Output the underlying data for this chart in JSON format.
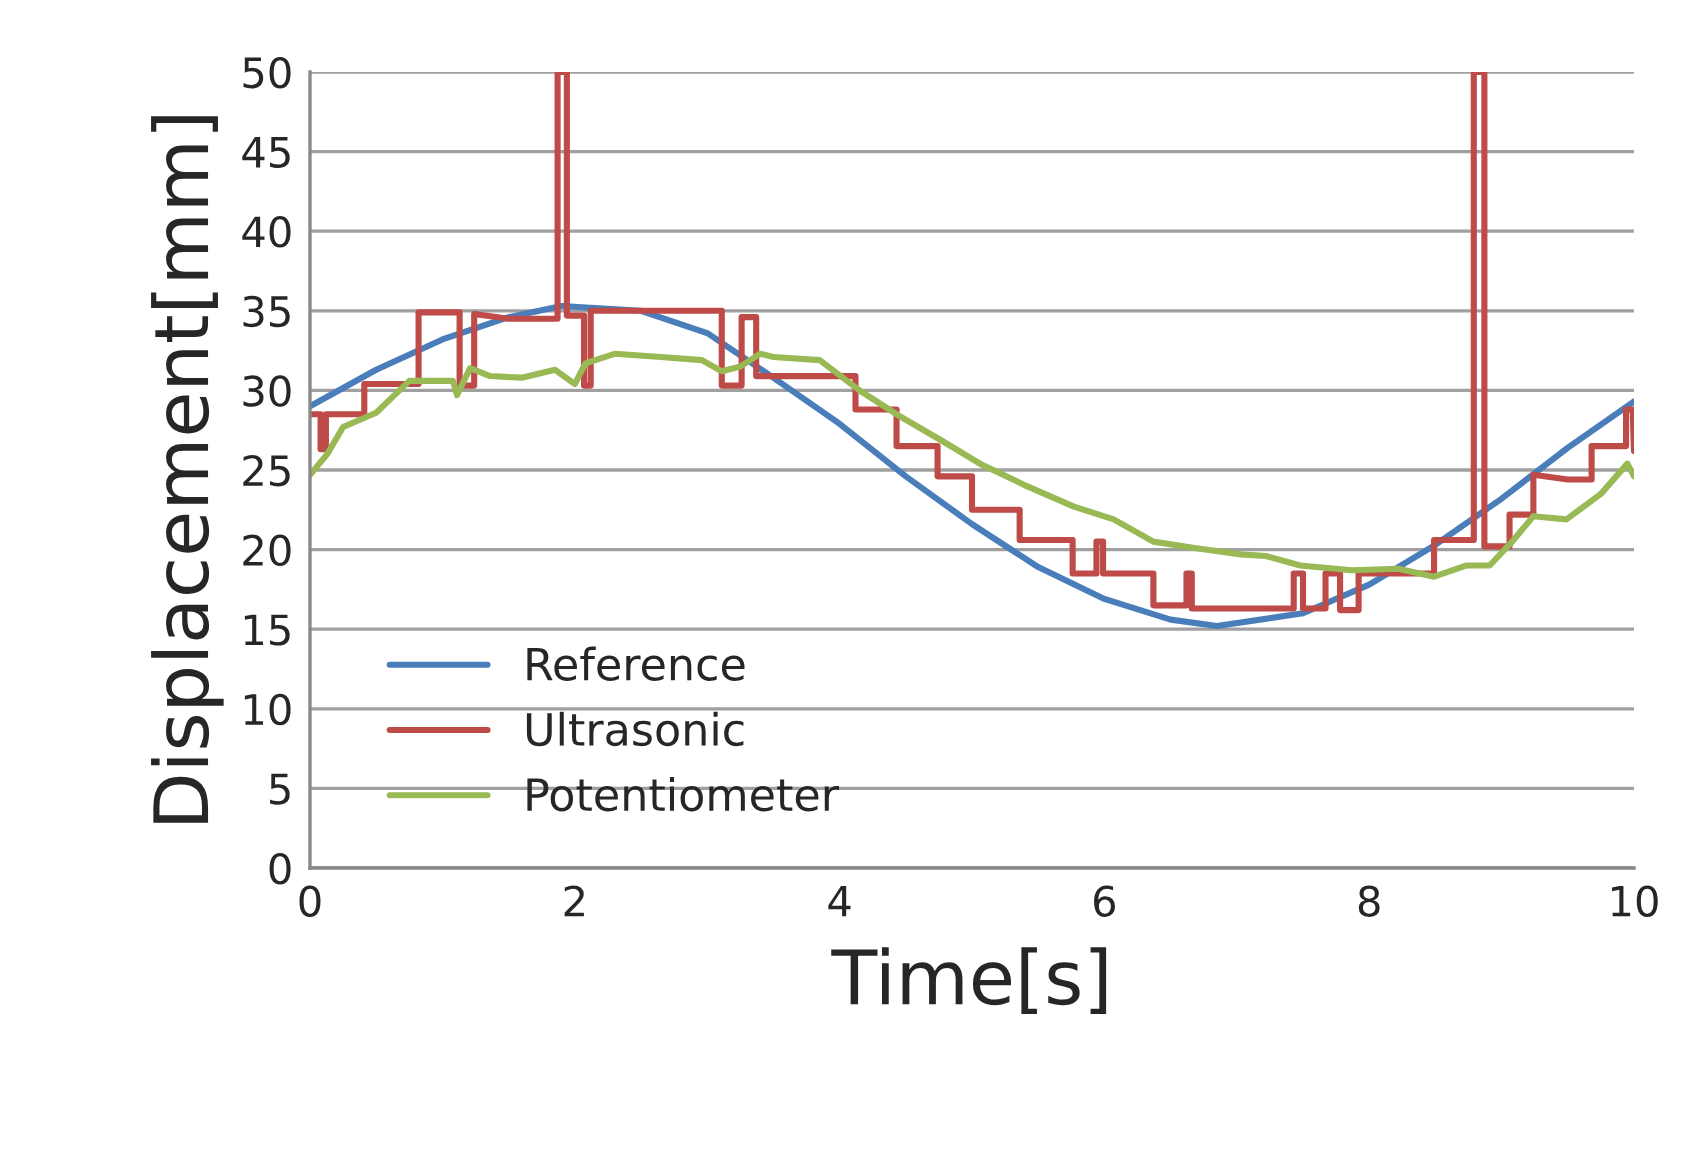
{
  "chart_data": {
    "type": "line",
    "xlabel": "Time[s]",
    "ylabel": "Displacement[mm]",
    "xlim": [
      0,
      10
    ],
    "xticks": [
      0,
      2,
      4,
      6,
      8,
      10
    ],
    "ylim": [
      0,
      50
    ],
    "yticks": [
      0,
      5,
      10,
      15,
      20,
      25,
      30,
      35,
      40,
      45,
      50
    ],
    "grid": "y",
    "legend": "bottom left",
    "marker": "none",
    "line_style": "solid",
    "series": [
      {
        "name": "Reference",
        "color": "#4a7ebb",
        "x": [
          0,
          0.5,
          1,
          1.5,
          1.9,
          2.5,
          3,
          3.5,
          4,
          4.5,
          5,
          5.5,
          6,
          6.5,
          6.85,
          7.5,
          8,
          8.5,
          9,
          9.5,
          10
        ],
        "values": [
          29.0,
          31.3,
          33.2,
          34.6,
          35.3,
          35.0,
          33.6,
          30.8,
          27.9,
          24.6,
          21.6,
          18.9,
          16.9,
          15.6,
          15.2,
          16.0,
          17.8,
          20.3,
          23.2,
          26.4,
          29.3
        ]
      },
      {
        "name": "Ultrasonic",
        "color": "#be4b48",
        "x": [
          0,
          0.08,
          0.08,
          0.12,
          0.12,
          0.41,
          0.41,
          0.82,
          0.82,
          1.13,
          1.13,
          1.24,
          1.24,
          1.5,
          1.87,
          1.87,
          1.94,
          1.94,
          2.07,
          2.07,
          2.12,
          2.12,
          3.11,
          3.11,
          3.26,
          3.26,
          3.37,
          3.37,
          4.12,
          4.12,
          4.43,
          4.43,
          4.74,
          4.74,
          5.0,
          5.0,
          5.36,
          5.36,
          5.76,
          5.76,
          5.94,
          5.94,
          5.99,
          5.99,
          6.37,
          6.37,
          6.62,
          6.62,
          6.66,
          6.66,
          7.43,
          7.43,
          7.5,
          7.5,
          7.67,
          7.67,
          7.78,
          7.78,
          7.92,
          7.92,
          8.49,
          8.49,
          8.79,
          8.79,
          8.87,
          8.87,
          9.06,
          9.06,
          9.24,
          9.24,
          9.5,
          9.68,
          9.68,
          9.94,
          9.94,
          9.99,
          10
        ],
        "values": [
          28.5,
          28.5,
          26.3,
          26.3,
          28.5,
          28.5,
          30.4,
          30.4,
          34.9,
          34.9,
          30.3,
          30.3,
          34.8,
          34.5,
          34.5,
          50,
          50,
          34.7,
          34.7,
          30.3,
          30.3,
          35.0,
          35.0,
          30.3,
          30.3,
          34.6,
          34.6,
          30.9,
          30.9,
          28.8,
          28.8,
          26.5,
          26.5,
          24.6,
          24.6,
          22.5,
          22.5,
          20.6,
          20.6,
          18.5,
          18.5,
          20.5,
          20.5,
          18.5,
          18.5,
          16.5,
          16.5,
          18.5,
          18.5,
          16.3,
          16.3,
          18.5,
          18.5,
          16.3,
          16.3,
          18.5,
          18.5,
          16.2,
          16.2,
          18.5,
          18.5,
          20.6,
          20.6,
          50,
          50,
          20.2,
          20.2,
          22.2,
          22.2,
          24.7,
          24.4,
          24.4,
          26.5,
          26.5,
          28.8,
          28.8,
          26.2
        ]
      },
      {
        "name": "Potentiometer",
        "color": "#98b954",
        "x": [
          0,
          0.13,
          0.25,
          0.5,
          0.75,
          1.08,
          1.11,
          1.21,
          1.36,
          1.6,
          1.85,
          2.0,
          2.08,
          2.3,
          2.65,
          2.96,
          3.11,
          3.25,
          3.4,
          3.5,
          3.85,
          4.15,
          4.45,
          4.76,
          5.06,
          5.41,
          5.77,
          6.07,
          6.37,
          6.68,
          7.03,
          7.22,
          7.48,
          7.87,
          8.22,
          8.49,
          8.73,
          8.91,
          9.09,
          9.24,
          9.49,
          9.75,
          9.95,
          10
        ],
        "values": [
          24.7,
          26.0,
          27.7,
          28.6,
          30.6,
          30.6,
          29.7,
          31.4,
          30.9,
          30.8,
          31.3,
          30.4,
          31.7,
          32.3,
          32.1,
          31.9,
          31.2,
          31.5,
          32.3,
          32.1,
          31.9,
          30.0,
          28.4,
          26.9,
          25.4,
          24.0,
          22.7,
          21.9,
          20.5,
          20.1,
          19.7,
          19.6,
          19.0,
          18.7,
          18.8,
          18.3,
          19.0,
          19.0,
          20.6,
          22.1,
          21.9,
          23.5,
          25.4,
          24.6
        ]
      }
    ]
  }
}
